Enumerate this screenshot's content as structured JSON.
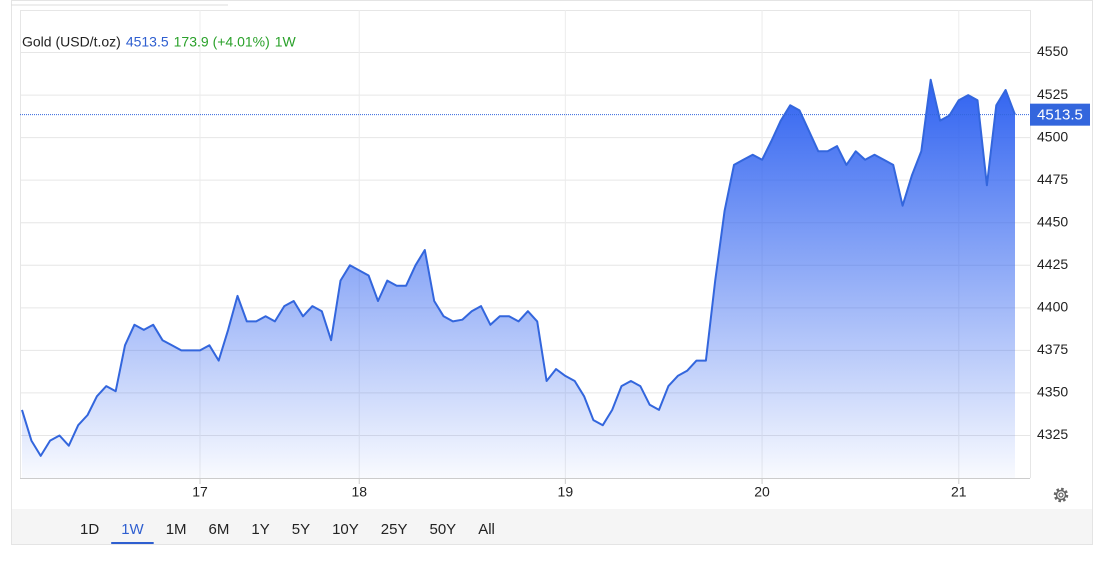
{
  "chart_data": {
    "type": "area",
    "title": "Gold (USD/t.oz)",
    "change": "173.9 (+4.01%)",
    "period": "1W",
    "ranges": [
      "1D",
      "1W",
      "1M",
      "6M",
      "1Y",
      "5Y",
      "10Y",
      "25Y",
      "50Y",
      "All"
    ],
    "series": [
      {
        "name": "Gold",
        "color": "#3366dd",
        "values": [
          4340,
          4322,
          4313,
          4322,
          4325,
          4319,
          4331,
          4337,
          4348,
          4354,
          4351,
          4378,
          4390,
          4387,
          4390,
          4381,
          4378,
          4375,
          4375,
          4375,
          4378,
          4369,
          4387,
          4407,
          4392,
          4392,
          4395,
          4392,
          4401,
          4404,
          4395,
          4401,
          4398,
          4381,
          4416,
          4425,
          4422,
          4419,
          4404,
          4416,
          4413,
          4413,
          4425,
          4434,
          4404,
          4395,
          4392,
          4393,
          4398,
          4401,
          4390,
          4395,
          4395,
          4392,
          4398,
          4392,
          4357,
          4364,
          4360,
          4357,
          4348,
          4334,
          4331,
          4340,
          4354,
          4357,
          4354,
          4343,
          4340,
          4354,
          4360,
          4363,
          4369,
          4369,
          4416,
          4457,
          4484,
          4487,
          4490,
          4487,
          4498,
          4510,
          4519,
          4516,
          4504,
          4492,
          4492,
          4495,
          4484,
          4492,
          4487,
          4490,
          4487,
          4484,
          4460,
          4478,
          4492,
          4534,
          4510,
          4513,
          4522,
          4525,
          4522,
          4472,
          4519,
          4528,
          4513.5
        ]
      }
    ],
    "xticks": [
      {
        "value": 19,
        "label": "17"
      },
      {
        "value": 36,
        "label": "18"
      },
      {
        "value": 58,
        "label": "19"
      },
      {
        "value": 79,
        "label": "20"
      },
      {
        "value": 100,
        "label": "21"
      }
    ],
    "ylim": [
      4300,
      4575
    ],
    "yticks": [
      4325,
      4350,
      4375,
      4400,
      4425,
      4450,
      4475,
      4500,
      4525,
      4550
    ],
    "grid": true
  }
}
